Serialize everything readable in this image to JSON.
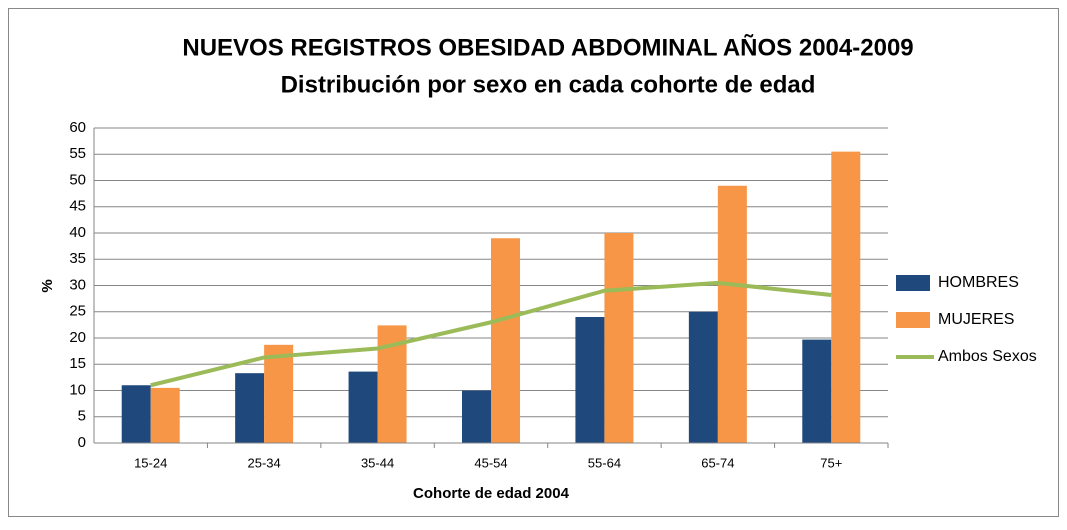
{
  "chart_data": {
    "type": "bar_line",
    "title": "NUEVOS REGISTROS OBESIDAD ABDOMINAL  AÑOS 2004-2009",
    "subtitle": "Distribución por sexo en cada cohorte de edad",
    "x_label": "Cohorte de edad 2004",
    "y_label": "%",
    "categories": [
      "15-24",
      "25-34",
      "35-44",
      "45-54",
      "55-64",
      "65-74",
      "75+"
    ],
    "series": [
      {
        "name": "HOMBRES",
        "type": "bar",
        "color": "#1f497d",
        "values": [
          11,
          13.3,
          13.6,
          10,
          24,
          25,
          19.7
        ]
      },
      {
        "name": "MUJERES",
        "type": "bar",
        "color": "#f79646",
        "values": [
          10.5,
          18.7,
          22.4,
          39,
          40,
          49,
          55.5
        ]
      },
      {
        "name": "Ambos Sexos",
        "type": "line",
        "color": "#9bbb59",
        "values": [
          11,
          16.3,
          18,
          23,
          29,
          30.5,
          28.2
        ]
      }
    ],
    "ylim": [
      0,
      60
    ],
    "yticks": [
      0,
      5,
      10,
      15,
      20,
      25,
      30,
      35,
      40,
      45,
      50,
      55,
      60
    ],
    "grid": true,
    "legend": "right"
  }
}
